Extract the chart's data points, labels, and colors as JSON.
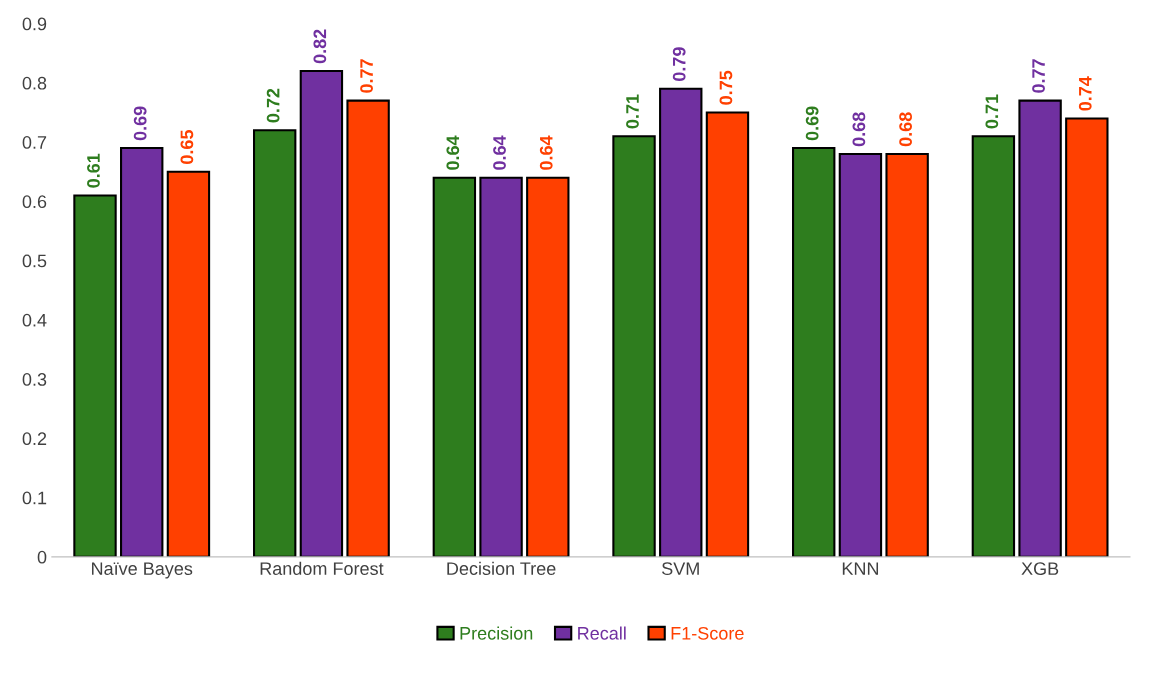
{
  "chart_data": {
    "type": "bar",
    "categories": [
      "Naïve Bayes",
      "Random Forest",
      "Decision Tree",
      "SVM",
      "KNN",
      "XGB"
    ],
    "series": [
      {
        "name": "Precision",
        "color": "#2e7d1e",
        "values": [
          0.61,
          0.72,
          0.64,
          0.71,
          0.69,
          0.71
        ]
      },
      {
        "name": "Recall",
        "color": "#7030a0",
        "values": [
          0.69,
          0.82,
          0.64,
          0.79,
          0.68,
          0.77
        ]
      },
      {
        "name": "F1-Score",
        "color": "#ff4000",
        "values": [
          0.65,
          0.77,
          0.64,
          0.75,
          0.68,
          0.74
        ]
      }
    ],
    "ylim": [
      0,
      0.9
    ],
    "yticks": [
      0,
      0.1,
      0.2,
      0.3,
      0.4,
      0.5,
      0.6,
      0.7,
      0.8,
      0.9
    ],
    "data_labels": true,
    "grid": false,
    "legend": "bottom"
  }
}
